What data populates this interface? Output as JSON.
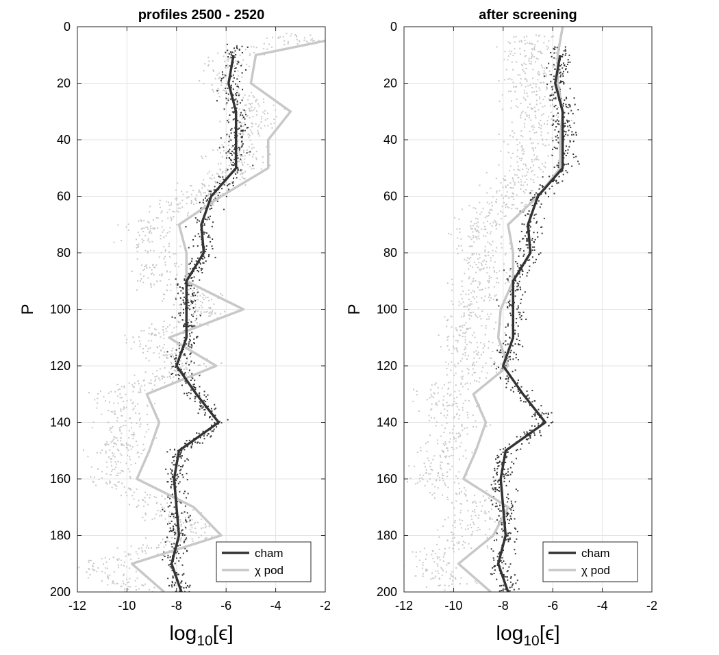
{
  "chart_data": [
    {
      "type": "line",
      "title": "profiles 2500 - 2520",
      "xlabel_base": "log",
      "xlabel_sub": "10",
      "xlabel_arg": "[ϵ]",
      "ylabel": "P",
      "xlim": [
        -12,
        -2
      ],
      "ylim": [
        0,
        200
      ],
      "y_reversed": true,
      "grid": true,
      "xticks": [
        "-12",
        "-10",
        "-8",
        "-6",
        "-4",
        "-2"
      ],
      "yticks": [
        "0",
        "20",
        "40",
        "60",
        "80",
        "100",
        "120",
        "140",
        "160",
        "180",
        "200"
      ],
      "legend_position": "bottom-right",
      "series": [
        {
          "name": "cham",
          "color": "#333333",
          "points": [
            [
              -5.7,
              10
            ],
            [
              -5.9,
              20
            ],
            [
              -5.6,
              30
            ],
            [
              -5.6,
              40
            ],
            [
              -5.6,
              50
            ],
            [
              -6.6,
              60
            ],
            [
              -7.0,
              70
            ],
            [
              -6.9,
              80
            ],
            [
              -7.6,
              90
            ],
            [
              -7.6,
              100
            ],
            [
              -7.6,
              110
            ],
            [
              -8.0,
              120
            ],
            [
              -7.2,
              130
            ],
            [
              -6.3,
              140
            ],
            [
              -7.9,
              150
            ],
            [
              -8.1,
              160
            ],
            [
              -8.0,
              170
            ],
            [
              -7.9,
              180
            ],
            [
              -8.2,
              190
            ],
            [
              -7.8,
              200
            ]
          ]
        },
        {
          "name": "χ pod",
          "color": "#c8c8c8",
          "points": [
            [
              -2.0,
              5
            ],
            [
              -4.8,
              10
            ],
            [
              -5.0,
              20
            ],
            [
              -3.4,
              30
            ],
            [
              -4.3,
              40
            ],
            [
              -4.3,
              50
            ],
            [
              -6.2,
              60
            ],
            [
              -7.9,
              70
            ],
            [
              -7.6,
              80
            ],
            [
              -7.6,
              90
            ],
            [
              -5.3,
              100
            ],
            [
              -8.3,
              110
            ],
            [
              -6.4,
              120
            ],
            [
              -9.2,
              130
            ],
            [
              -8.7,
              140
            ],
            [
              -9.1,
              150
            ],
            [
              -9.6,
              160
            ],
            [
              -7.3,
              170
            ],
            [
              -6.2,
              180
            ],
            [
              -9.8,
              190
            ],
            [
              -8.5,
              200
            ]
          ]
        }
      ]
    },
    {
      "type": "line",
      "title": "after screening",
      "xlabel_base": "log",
      "xlabel_sub": "10",
      "xlabel_arg": "[ϵ]",
      "ylabel": "P",
      "xlim": [
        -12,
        -2
      ],
      "ylim": [
        0,
        200
      ],
      "y_reversed": true,
      "grid": true,
      "xticks": [
        "-12",
        "-10",
        "-8",
        "-6",
        "-4",
        "-2"
      ],
      "yticks": [
        "0",
        "20",
        "40",
        "60",
        "80",
        "100",
        "120",
        "140",
        "160",
        "180",
        "200"
      ],
      "legend_position": "bottom-right",
      "series": [
        {
          "name": "cham",
          "color": "#333333",
          "points": [
            [
              -5.7,
              10
            ],
            [
              -5.9,
              20
            ],
            [
              -5.6,
              30
            ],
            [
              -5.6,
              40
            ],
            [
              -5.6,
              50
            ],
            [
              -6.6,
              60
            ],
            [
              -7.0,
              70
            ],
            [
              -6.9,
              80
            ],
            [
              -7.6,
              90
            ],
            [
              -7.6,
              100
            ],
            [
              -7.6,
              110
            ],
            [
              -8.0,
              120
            ],
            [
              -7.2,
              130
            ],
            [
              -6.3,
              140
            ],
            [
              -7.9,
              150
            ],
            [
              -8.1,
              160
            ],
            [
              -8.0,
              170
            ],
            [
              -7.9,
              180
            ],
            [
              -8.2,
              190
            ],
            [
              -7.8,
              200
            ]
          ]
        },
        {
          "name": "χ pod",
          "color": "#c8c8c8",
          "points": [
            [
              -5.6,
              0
            ],
            [
              -5.8,
              10
            ],
            [
              -5.8,
              20
            ],
            [
              -5.6,
              30
            ],
            [
              -5.7,
              40
            ],
            [
              -5.7,
              50
            ],
            [
              -6.6,
              60
            ],
            [
              -7.8,
              70
            ],
            [
              -7.6,
              80
            ],
            [
              -7.6,
              90
            ],
            [
              -8.1,
              100
            ],
            [
              -8.2,
              110
            ],
            [
              -7.8,
              120
            ],
            [
              -9.2,
              130
            ],
            [
              -8.7,
              140
            ],
            [
              -9.1,
              150
            ],
            [
              -9.6,
              160
            ],
            [
              -7.8,
              170
            ],
            [
              -8.4,
              180
            ],
            [
              -9.8,
              190
            ],
            [
              -8.5,
              200
            ]
          ]
        }
      ]
    }
  ]
}
